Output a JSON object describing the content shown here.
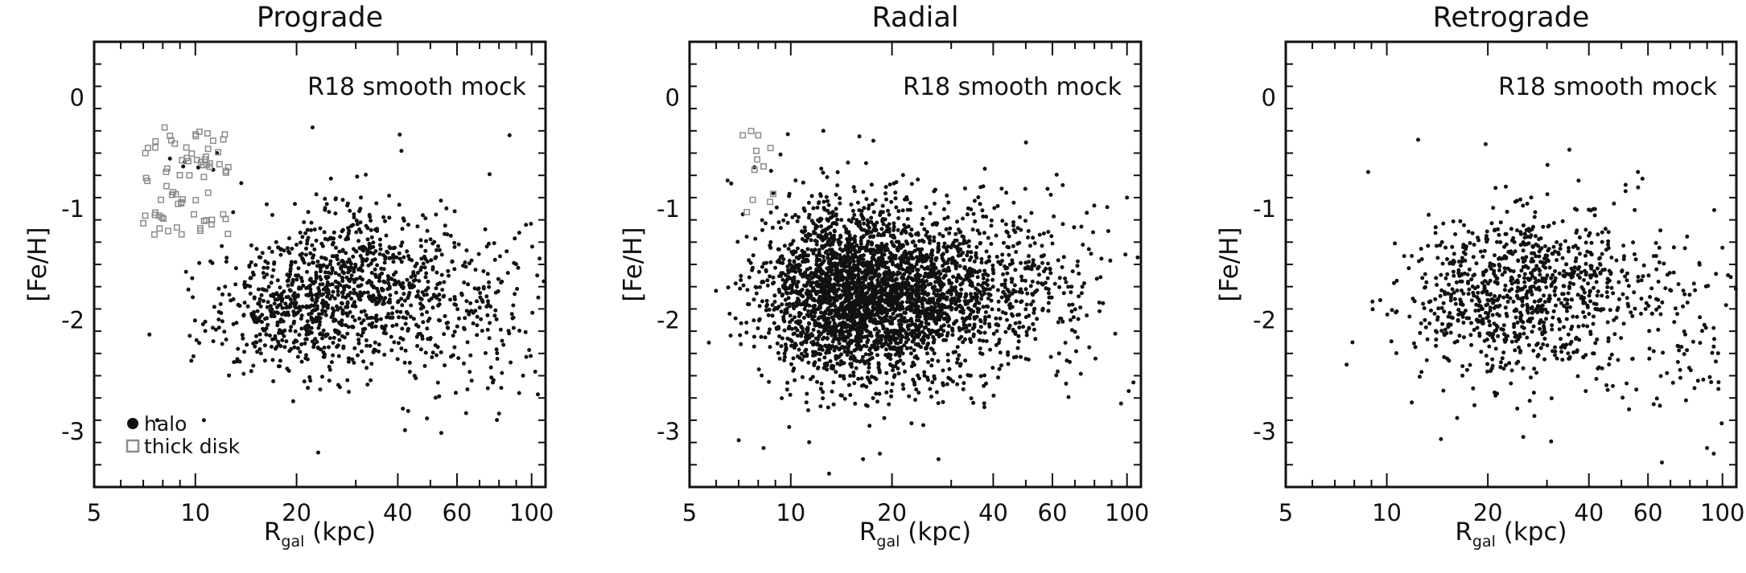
{
  "figure": {
    "colors": {
      "halo": "#111111",
      "thick_disk": "#8c8c8c",
      "axes": "#111111"
    }
  },
  "chart_data": [
    {
      "type": "scatter",
      "title": "Prograde",
      "annotation": "R18 smooth mock",
      "xlabel_main": "R",
      "xlabel_sub": "gal",
      "xlabel_unit": " (kpc)",
      "ylabel": "[Fe/H]",
      "xscale": "log",
      "xlim": [
        5,
        110
      ],
      "ylim": [
        -3.5,
        0.5
      ],
      "xticks": [
        5,
        10,
        20,
        40,
        60,
        100
      ],
      "yticks": [
        0,
        -1,
        -2,
        -3
      ],
      "grid": false,
      "legend": {
        "placement": "bottom-left",
        "entries": [
          {
            "label": "halo",
            "marker": "filled-circle"
          },
          {
            "label": "thick disk",
            "marker": "open-square"
          }
        ]
      },
      "series": [
        {
          "name": "halo",
          "marker": "filled-circle",
          "density_centers": [
            {
              "x": 20,
              "y": -1.9,
              "sx": 0.13,
              "sy": 0.28,
              "n": 500
            },
            {
              "x": 30,
              "y": -1.55,
              "sx": 0.12,
              "sy": 0.3,
              "n": 400
            },
            {
              "x": 50,
              "y": -1.9,
              "sx": 0.2,
              "sy": 0.42,
              "n": 400
            }
          ],
          "points": [
            [
              8.4,
              -0.55
            ],
            [
              9.2,
              -0.62
            ],
            [
              10.2,
              -0.63
            ],
            [
              13.7,
              -0.77
            ],
            [
              9.3,
              -0.58
            ],
            [
              11.3,
              -0.65
            ],
            [
              11.6,
              -0.5
            ],
            [
              16.3,
              -0.96
            ],
            [
              22.3,
              -0.27
            ],
            [
              75,
              -0.69
            ],
            [
              86,
              -0.34
            ],
            [
              7.3,
              -2.13
            ],
            [
              7.7,
              -2.9
            ],
            [
              10.6,
              -2.9
            ],
            [
              23.2,
              -3.19
            ],
            [
              80,
              -2.84
            ],
            [
              41,
              -0.48
            ]
          ]
        },
        {
          "name": "thick disk",
          "marker": "open-square",
          "x_range": [
            7,
            13
          ],
          "y_range": [
            -1.25,
            -0.3
          ],
          "n": 60,
          "points": [
            [
              8.1,
              -0.27
            ],
            [
              7.6,
              -0.45
            ],
            [
              9.4,
              -0.45
            ],
            [
              11.8,
              -0.6
            ],
            [
              10.4,
              -0.58
            ],
            [
              9.6,
              -0.7
            ],
            [
              8.6,
              -0.85
            ],
            [
              7.9,
              -0.92
            ],
            [
              8.3,
              -1.2
            ],
            [
              9.9,
              -1.05
            ],
            [
              11.2,
              -1.1
            ],
            [
              12.1,
              -1.05
            ],
            [
              7.1,
              -0.5
            ],
            [
              7.2,
              -0.75
            ]
          ]
        }
      ]
    },
    {
      "type": "scatter",
      "title": "Radial",
      "annotation": "R18 smooth mock",
      "xlabel_main": "R",
      "xlabel_sub": "gal",
      "xlabel_unit": " (kpc)",
      "ylabel": "[Fe/H]",
      "xscale": "log",
      "xlim": [
        5,
        110
      ],
      "ylim": [
        -3.5,
        0.5
      ],
      "xticks": [
        5,
        10,
        20,
        40,
        60,
        100
      ],
      "yticks": [
        0,
        -1,
        -2,
        -3
      ],
      "grid": false,
      "series": [
        {
          "name": "halo",
          "marker": "filled-circle",
          "density_centers": [
            {
              "x": 14,
              "y": -1.75,
              "sx": 0.12,
              "sy": 0.38,
              "n": 1700
            },
            {
              "x": 22,
              "y": -1.8,
              "sx": 0.14,
              "sy": 0.38,
              "n": 1200
            },
            {
              "x": 40,
              "y": -1.7,
              "sx": 0.17,
              "sy": 0.45,
              "n": 500
            }
          ],
          "points": [
            [
              12.5,
              -0.3
            ],
            [
              9.8,
              -0.33
            ],
            [
              16,
              -0.35
            ],
            [
              16.4,
              -3.25
            ],
            [
              18.4,
              -3.2
            ],
            [
              13,
              -3.38
            ],
            [
              7,
              -3.08
            ],
            [
              7.2,
              -1.05
            ],
            [
              96,
              -2.75
            ],
            [
              100,
              -0.9
            ],
            [
              88,
              -1.2
            ],
            [
              27.5,
              -3.25
            ],
            [
              8.3,
              -3.15
            ]
          ]
        },
        {
          "name": "thick disk",
          "marker": "open-square",
          "x_range": [
            7,
            9
          ],
          "y_range": [
            -1.05,
            -0.3
          ],
          "n": 6,
          "points": [
            [
              7.2,
              -0.34
            ],
            [
              8.0,
              -0.34
            ],
            [
              7.9,
              -0.48
            ],
            [
              7.8,
              -0.65
            ],
            [
              8.3,
              -0.62
            ],
            [
              7.4,
              -1.03
            ]
          ]
        }
      ]
    },
    {
      "type": "scatter",
      "title": "Retrograde",
      "annotation": "R18 smooth mock",
      "xlabel_main": "R",
      "xlabel_sub": "gal",
      "xlabel_unit": " (kpc)",
      "ylabel": "[Fe/H]",
      "xscale": "log",
      "xlim": [
        5,
        110
      ],
      "ylim": [
        -3.5,
        0.5
      ],
      "xticks": [
        5,
        10,
        20,
        40,
        60,
        100
      ],
      "yticks": [
        0,
        -1,
        -2,
        -3
      ],
      "grid": false,
      "series": [
        {
          "name": "halo",
          "marker": "filled-circle",
          "density_centers": [
            {
              "x": 20,
              "y": -1.85,
              "sx": 0.14,
              "sy": 0.35,
              "n": 450
            },
            {
              "x": 32,
              "y": -1.65,
              "sx": 0.14,
              "sy": 0.35,
              "n": 350
            },
            {
              "x": 55,
              "y": -1.9,
              "sx": 0.2,
              "sy": 0.42,
              "n": 250
            }
          ],
          "points": [
            [
              8.8,
              -0.67
            ],
            [
              12.4,
              -0.38
            ],
            [
              19.7,
              -0.42
            ],
            [
              35,
              -0.47
            ],
            [
              56,
              -0.67
            ],
            [
              14.5,
              -3.07
            ],
            [
              16.2,
              -2.88
            ],
            [
              25.5,
              -3.05
            ],
            [
              66,
              -3.28
            ],
            [
              90,
              -3.15
            ],
            [
              7.9,
              -2.2
            ],
            [
              100,
              -1.35
            ]
          ]
        }
      ]
    }
  ]
}
